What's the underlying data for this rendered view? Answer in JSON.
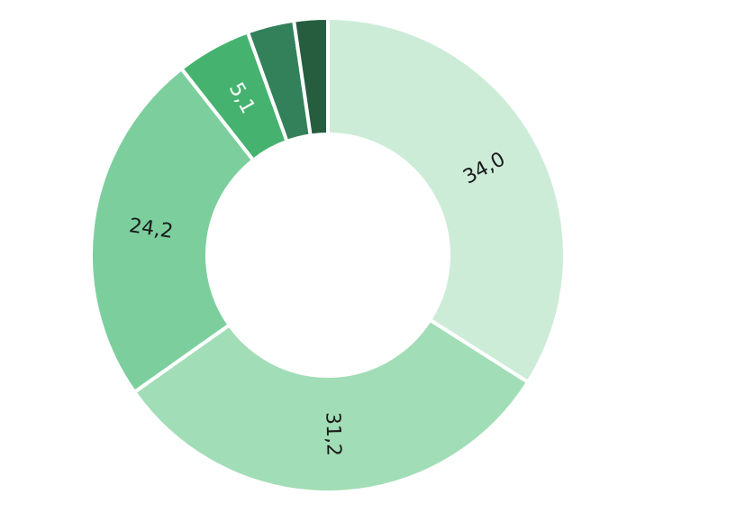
{
  "chart_data": {
    "type": "donut",
    "values": [
      34.0,
      31.2,
      24.2,
      5.1,
      3.2,
      2.3
    ],
    "value_labels": [
      "34,0",
      "31,2",
      "24,2",
      "5,1",
      null,
      null
    ],
    "colors": [
      "#cdecd8",
      "#a1ddb6",
      "#7ccf9d",
      "#45b36f",
      "#33815a",
      "#265d3f"
    ]
  }
}
